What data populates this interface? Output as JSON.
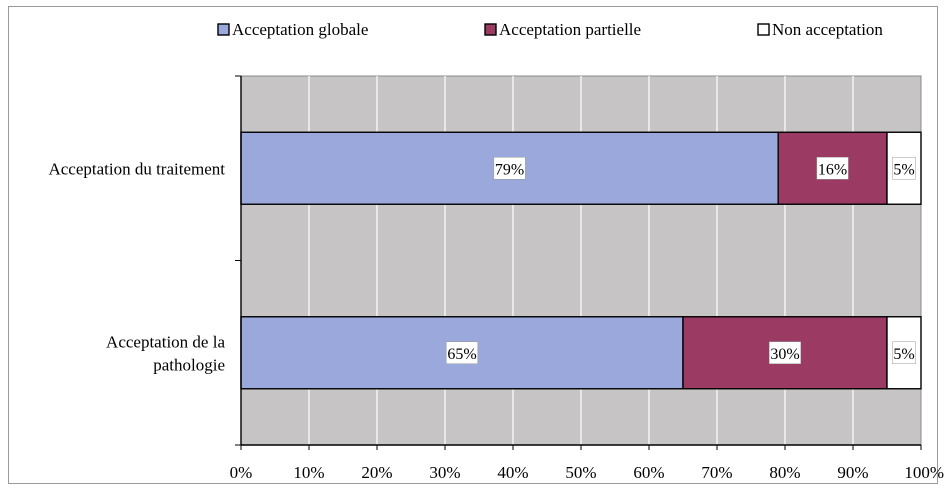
{
  "chart_data": {
    "type": "bar",
    "orientation": "horizontal",
    "stacked": true,
    "percent_scale": true,
    "categories": [
      "Acceptation du traitement",
      "Acceptation de la pathologie"
    ],
    "category_lines": [
      [
        "Acceptation du traitement"
      ],
      [
        "Acceptation de la",
        "pathologie"
      ]
    ],
    "series": [
      {
        "name": "Acceptation globale",
        "values": [
          79,
          65
        ],
        "labels": [
          "79%",
          "65%"
        ],
        "color": "#9aa8dc"
      },
      {
        "name": "Acceptation partielle",
        "values": [
          16,
          30
        ],
        "labels": [
          "16%",
          "30%"
        ],
        "color": "#9b3a62"
      },
      {
        "name": "Non acceptation",
        "values": [
          5,
          5
        ],
        "labels": [
          "5%",
          "5%"
        ],
        "color": "#ffffff"
      }
    ],
    "x_ticks": [
      "0%",
      "10%",
      "20%",
      "30%",
      "40%",
      "50%",
      "60%",
      "70%",
      "80%",
      "90%",
      "100%"
    ],
    "xlim": [
      0,
      100
    ],
    "grid": true,
    "plot_background": "#c6c4c4",
    "legend_position": "top",
    "title": "",
    "xlabel": "",
    "ylabel": ""
  }
}
